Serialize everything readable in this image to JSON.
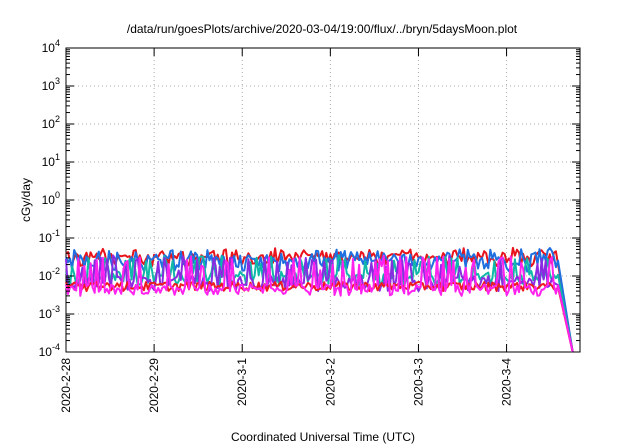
{
  "chart_data": {
    "type": "line",
    "title": "/data/run/goesPlots/archive/2020-03-04/19:00/flux/../bryn/5daysMoon.plot",
    "xlabel": "Coordinated Universal Time (UTC)",
    "ylabel": "cGy/day",
    "yscale": "log",
    "ylim": [
      0.0001,
      10000
    ],
    "y_ticks": [
      {
        "value": 0.0001,
        "base": "10",
        "exp": "-4"
      },
      {
        "value": 0.001,
        "base": "10",
        "exp": "-3"
      },
      {
        "value": 0.01,
        "base": "10",
        "exp": "-2"
      },
      {
        "value": 0.1,
        "base": "10",
        "exp": "-1"
      },
      {
        "value": 1,
        "base": "10",
        "exp": "0"
      },
      {
        "value": 10,
        "base": "10",
        "exp": "1"
      },
      {
        "value": 100,
        "base": "10",
        "exp": "2"
      },
      {
        "value": 1000,
        "base": "10",
        "exp": "3"
      },
      {
        "value": 10000,
        "base": "10",
        "exp": "4"
      }
    ],
    "xlim": [
      "2020-02-28",
      "2020-03-04 20:00"
    ],
    "x_ticks": [
      "2020-2-28",
      "2020-2-29",
      "2020-3-1",
      "2020-3-2",
      "2020-3-3",
      "2020-3-4"
    ],
    "grid": true,
    "series": [
      {
        "color": "#e8131b",
        "base": 0.03,
        "amp": 0.012,
        "spikes": 0.015
      },
      {
        "color": "#1f6fe0",
        "base": 0.023,
        "amp": 0.01,
        "spikes": 0.02
      },
      {
        "color": "#10b8a8",
        "base": 0.0095,
        "amp": 0.004,
        "spikes": 0.02
      },
      {
        "color": "#8a2be2",
        "base": 0.007,
        "amp": 0.003,
        "spikes": 0.022
      },
      {
        "color": "#ee1c20",
        "base": 0.0055,
        "amp": 0.0015,
        "spikes": 0.0
      },
      {
        "color": "#ff22ee",
        "base": 0.0045,
        "amp": 0.0015,
        "spikes": 0.024
      }
    ],
    "end_drop": {
      "x": "2020-03-04 14:00",
      "to": 0.0001
    }
  }
}
